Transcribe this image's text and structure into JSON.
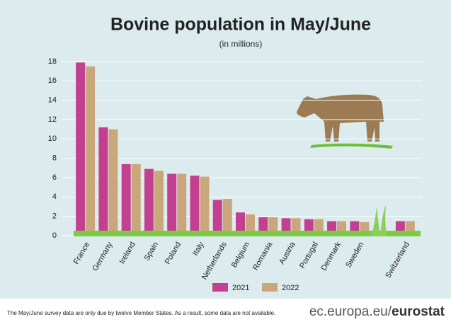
{
  "chart_data": {
    "type": "bar",
    "title": "Bovine population in May/June",
    "subtitle": "(in millions)",
    "categories": [
      "France",
      "Germany",
      "Ireland",
      "Spain",
      "Poland",
      "Italy",
      "Netherlands",
      "Belgium",
      "Romania",
      "Austria",
      "Portugal",
      "Denmark",
      "Sweden",
      null,
      "Switzerland"
    ],
    "series": [
      {
        "name": "2021",
        "color": "#c2408f",
        "values": [
          17.9,
          11.2,
          7.4,
          6.9,
          6.4,
          6.2,
          3.7,
          2.4,
          1.9,
          1.8,
          1.7,
          1.5,
          1.5,
          null,
          1.5
        ]
      },
      {
        "name": "2022",
        "color": "#c9a67b",
        "values": [
          17.5,
          11.0,
          7.4,
          6.7,
          6.4,
          6.1,
          3.8,
          2.2,
          1.9,
          1.8,
          1.7,
          1.5,
          1.4,
          null,
          1.5
        ]
      }
    ],
    "ylim": [
      0,
      18
    ],
    "yticks": [
      0,
      2,
      4,
      6,
      8,
      10,
      12,
      14,
      16,
      18
    ],
    "grid": true,
    "legend": "bottom",
    "note": "The May/June survey data are only due by twelve Member States. As a result, some data are not available.",
    "source": [
      "ec.europa.eu/",
      "eurostat"
    ]
  }
}
